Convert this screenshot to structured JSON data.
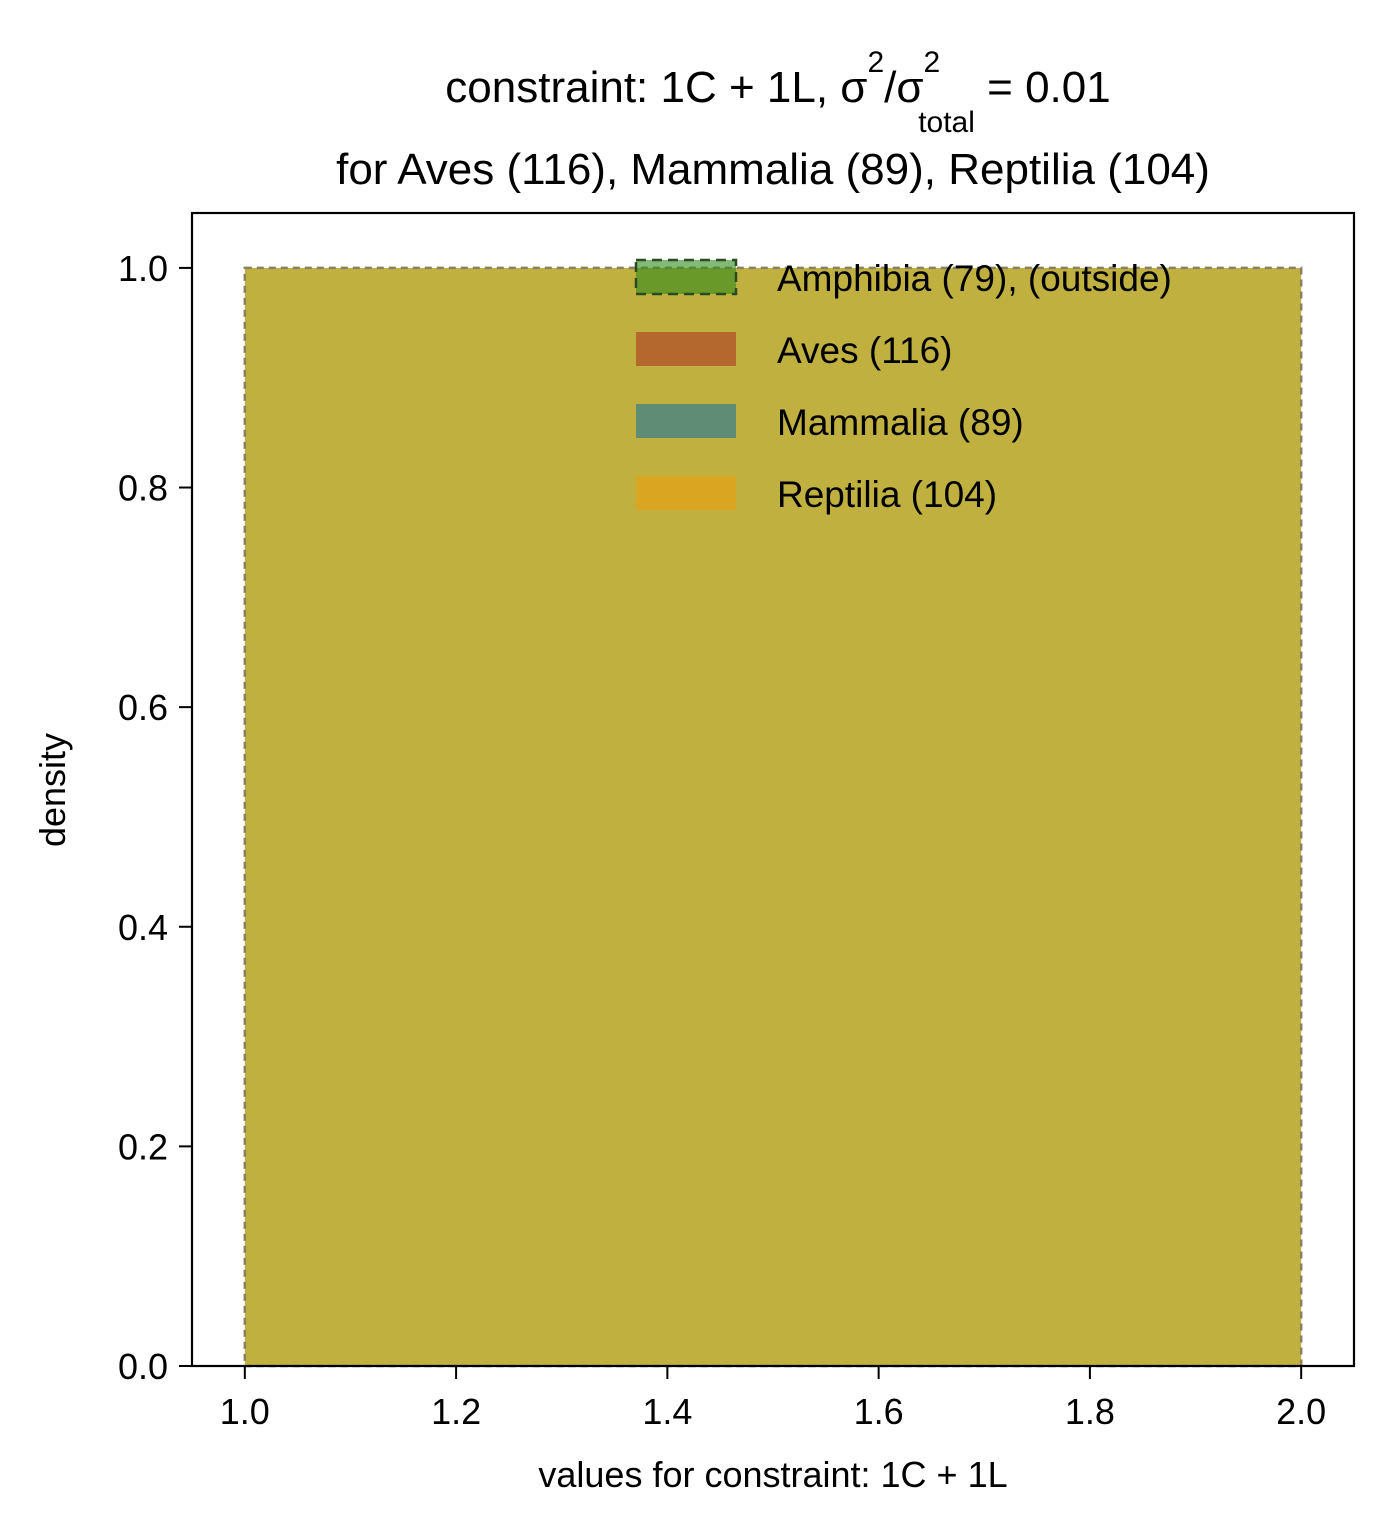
{
  "chart_data": {
    "type": "bar",
    "title": {
      "line1_prefix": "constraint: 1C + 1L, σ",
      "line1_sup1": "2",
      "line1_mid": "/σ",
      "line1_sup2": "2",
      "line1_sub": "total",
      "line1_suffix": " =  0.01",
      "line2": "for Aves (116), Mammalia (89), Reptilia (104)"
    },
    "xlabel": "values for constraint: 1C + 1L",
    "ylabel": "density",
    "xlim": [
      0.95,
      2.05
    ],
    "ylim": [
      0.0,
      1.05
    ],
    "xticks": [
      1.0,
      1.2,
      1.4,
      1.6,
      1.8,
      2.0
    ],
    "xtick_labels": [
      "1.0",
      "1.2",
      "1.4",
      "1.6",
      "1.8",
      "2.0"
    ],
    "yticks": [
      0.0,
      0.2,
      0.4,
      0.6,
      0.8,
      1.0
    ],
    "ytick_labels": [
      "0.0",
      "0.2",
      "0.4",
      "0.6",
      "0.8",
      "1.0"
    ],
    "grid": false,
    "legend_position": "top-right",
    "series": [
      {
        "name": "Amphibia (79), (outside)",
        "color": "#2f8a1a",
        "opacity": 0.6,
        "style": "dashed-edge",
        "bins": [
          {
            "x0": 1.0,
            "x1": 2.0,
            "density": 1.0
          }
        ]
      },
      {
        "name": "Aves (116)",
        "color": "#b5682e",
        "opacity": 1.0,
        "style": "filled",
        "bins": [
          {
            "x0": 1.0,
            "x1": 2.0,
            "density": 1.0
          }
        ]
      },
      {
        "name": "Mammalia (89)",
        "color": "#5f8c75",
        "opacity": 1.0,
        "style": "filled",
        "bins": [
          {
            "x0": 1.0,
            "x1": 2.0,
            "density": 1.0
          }
        ]
      },
      {
        "name": "Reptilia (104)",
        "color": "#daa520",
        "opacity": 1.0,
        "style": "filled",
        "bins": [
          {
            "x0": 1.0,
            "x1": 2.0,
            "density": 1.0
          }
        ]
      }
    ],
    "overlap_color": "#c0b040"
  }
}
